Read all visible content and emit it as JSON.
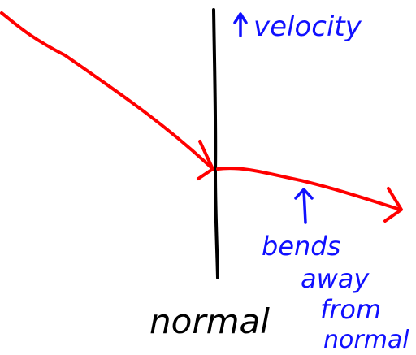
{
  "labels": {
    "velocity": "velocity",
    "normal": "normal",
    "bends_line1": "bends",
    "bends_line2": "away",
    "bends_line3": "from",
    "bends_line4": "normal"
  },
  "colors": {
    "ray": "#ff0000",
    "annotation": "#1010ff",
    "normal_line": "#000000",
    "background": "#ffffff"
  },
  "icons": {
    "velocity_marker": "up-arrow-icon",
    "pointer_marker": "up-arrow-icon",
    "ray_head": "arrowhead-icon"
  }
}
